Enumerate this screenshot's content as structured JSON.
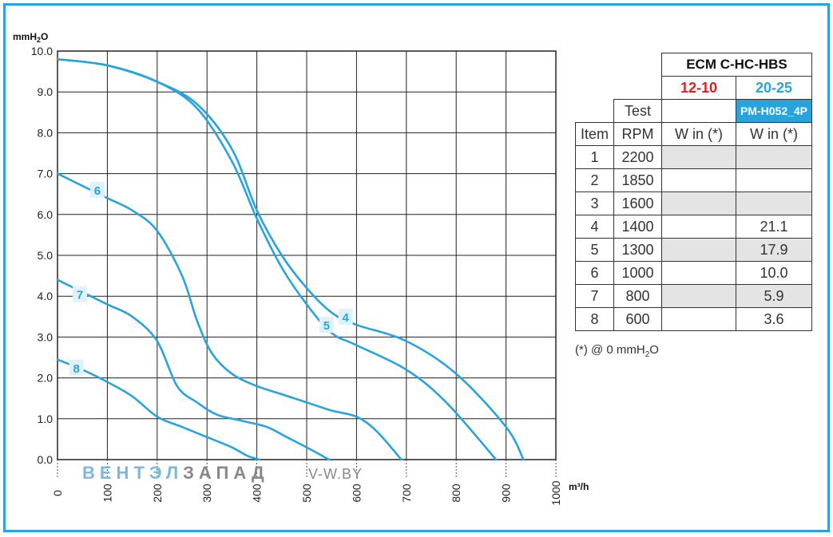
{
  "chart_data": {
    "type": "line",
    "ylabel": "mmH2O",
    "xlabel": "m³/h",
    "xlim": [
      0,
      1000
    ],
    "ylim": [
      0,
      10
    ],
    "grid": true,
    "x_ticks": [
      "0",
      "100",
      "200",
      "300",
      "400",
      "500",
      "600",
      "700",
      "800",
      "900",
      "1000"
    ],
    "y_ticks": [
      "0.0",
      "1.0",
      "2.0",
      "3.0",
      "4.0",
      "5.0",
      "6.0",
      "7.0",
      "8.0",
      "9.0",
      "10.0"
    ],
    "series": [
      {
        "name": "4",
        "x": [
          0,
          100,
          200,
          280,
          350,
          400,
          450,
          500,
          550,
          600,
          700,
          800,
          900,
          935
        ],
        "y": [
          9.8,
          9.65,
          9.25,
          8.7,
          7.6,
          6.1,
          5.0,
          4.2,
          3.6,
          3.3,
          2.9,
          2.1,
          0.8,
          0.0
        ],
        "label_at": [
          578,
          3.5
        ]
      },
      {
        "name": "5",
        "x": [
          0,
          100,
          200,
          280,
          350,
          400,
          450,
          500,
          550,
          600,
          700,
          780,
          880
        ],
        "y": [
          9.8,
          9.65,
          9.25,
          8.6,
          7.3,
          5.9,
          4.7,
          3.8,
          3.1,
          2.8,
          2.2,
          1.4,
          0.0
        ],
        "label_at": [
          540,
          3.3
        ]
      },
      {
        "name": "6",
        "x": [
          0,
          50,
          100,
          150,
          200,
          250,
          280,
          310,
          350,
          400,
          450,
          500,
          550,
          600,
          640,
          690
        ],
        "y": [
          7.0,
          6.7,
          6.4,
          6.1,
          5.6,
          4.5,
          3.4,
          2.6,
          2.1,
          1.8,
          1.6,
          1.4,
          1.2,
          1.05,
          0.7,
          0.0
        ],
        "label_at": [
          80,
          6.6
        ]
      },
      {
        "name": "7",
        "x": [
          0,
          50,
          100,
          150,
          200,
          240,
          280,
          320,
          370,
          420,
          460,
          500,
          545
        ],
        "y": [
          4.4,
          4.1,
          3.8,
          3.5,
          2.9,
          1.8,
          1.4,
          1.1,
          0.95,
          0.8,
          0.55,
          0.3,
          0.0
        ],
        "label_at": [
          45,
          4.05
        ]
      },
      {
        "name": "8",
        "x": [
          0,
          50,
          100,
          150,
          200,
          250,
          300,
          350,
          380,
          405
        ],
        "y": [
          2.45,
          2.2,
          1.9,
          1.55,
          1.05,
          0.8,
          0.55,
          0.3,
          0.1,
          0.0
        ],
        "label_at": [
          38,
          2.25
        ]
      }
    ],
    "line_color": "#29a3dc"
  },
  "table": {
    "title": "ECM C-HC-HBS",
    "col1_code": "12-10",
    "col2_code": "20-25",
    "test_label": "Test",
    "model": "PM-H052_4P",
    "headers": [
      "Item",
      "RPM",
      "W in (*)",
      "W in (*)"
    ],
    "rows": [
      {
        "item": "1",
        "rpm": "2200",
        "w1": "",
        "w2": ""
      },
      {
        "item": "2",
        "rpm": "1850",
        "w1": "",
        "w2": ""
      },
      {
        "item": "3",
        "rpm": "1600",
        "w1": "",
        "w2": ""
      },
      {
        "item": "4",
        "rpm": "1400",
        "w1": "",
        "w2": "21.1"
      },
      {
        "item": "5",
        "rpm": "1300",
        "w1": "",
        "w2": "17.9"
      },
      {
        "item": "6",
        "rpm": "1000",
        "w1": "",
        "w2": "10.0"
      },
      {
        "item": "7",
        "rpm": "800",
        "w1": "",
        "w2": "5.9"
      },
      {
        "item": "8",
        "rpm": "600",
        "w1": "",
        "w2": "3.6"
      }
    ]
  },
  "footnote": {
    "prefix": "(*) @ 0 mmH",
    "sub": "2",
    "suffix": "O"
  },
  "watermark": {
    "part1": "ВЕНТЭЛ",
    "part2": "ЗАПАД",
    "url": "V-W.BY"
  },
  "colors": {
    "accent": "#29a3dc",
    "red": "#e02020",
    "shade": "#e4e4e4"
  }
}
